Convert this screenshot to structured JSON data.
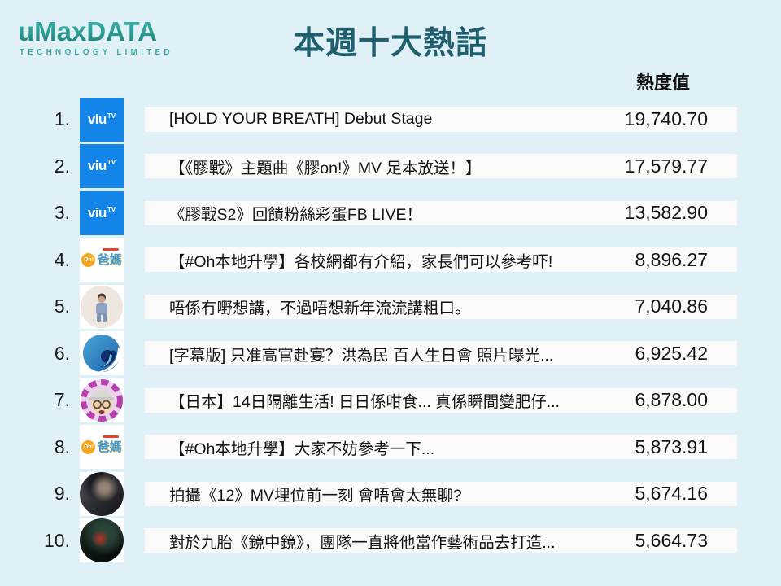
{
  "brand": {
    "name": "uMaxDATA",
    "subtitle": "TECHNOLOGY LIMITED"
  },
  "title": "本週十大熱話",
  "column_header": "熱度值",
  "colors": {
    "background": "#DFF0F6",
    "bar_background": "#FAFAFA",
    "title_teal": "#20606E",
    "brand_teal": "#2FA39B",
    "viutv_blue": "#1485E8",
    "ohpama_orange": "#F7A61B",
    "ohpama_blue": "#3D9BD4",
    "wave_navy": "#0F2E66"
  },
  "icons": {
    "viutv_label": "viu",
    "viutv_sup": "TV",
    "ohpama_circle": "Oh!",
    "ohpama_text": "爸媽"
  },
  "rows": [
    {
      "rank": "1.",
      "icon": "viutv",
      "title": "[HOLD YOUR BREATH] Debut Stage",
      "value": "19,740.70"
    },
    {
      "rank": "2.",
      "icon": "viutv",
      "title": "【《膠戰》主題曲《膠on!》MV 足本放送！】",
      "value": "17,579.77"
    },
    {
      "rank": "3.",
      "icon": "viutv",
      "title": "《膠戰S2》回饋粉絲彩蛋FB LIVE！",
      "value": "13,582.90"
    },
    {
      "rank": "4.",
      "icon": "ohpama",
      "title": "【#Oh本地升學】各校網都有介紹，家長們可以參考吓!",
      "value": "8,896.27"
    },
    {
      "rank": "5.",
      "icon": "person-photo",
      "title": "唔係冇嘢想講，不過唔想新年流流講粗口。",
      "value": "7,040.86"
    },
    {
      "rank": "6.",
      "icon": "wave-logo",
      "title": "[字幕版] 只准高官赴宴？洪為民 百人生日會 照片曝光...",
      "value": "6,925.42"
    },
    {
      "rank": "7.",
      "icon": "capman-photo",
      "title": "【日本】14日隔離生活! 日日係咁食... 真係瞬間變肥仔...",
      "value": "6,878.00"
    },
    {
      "rank": "8.",
      "icon": "ohpama",
      "title": "【#Oh本地升學】大家不妨參考一下...",
      "value": "5,873.91"
    },
    {
      "rank": "9.",
      "icon": "portrait-photo",
      "title": "拍攝《12》MV埋位前一刻 會唔會太無聊?",
      "value": "5,674.16"
    },
    {
      "rank": "10.",
      "icon": "darkgreen-photo",
      "title": "對於九胎《鏡中鏡》，團隊一直將他當作藝術品去打造...",
      "value": "5,664.73"
    }
  ],
  "chart_data": {
    "type": "table",
    "title": "本週十大熱話",
    "value_label": "熱度值",
    "ranks": [
      1,
      2,
      3,
      4,
      5,
      6,
      7,
      8,
      9,
      10
    ],
    "labels": [
      "[HOLD YOUR BREATH] Debut Stage",
      "【《膠戰》主題曲《膠on!》MV 足本放送！】",
      "《膠戰S2》回饋粉絲彩蛋FB LIVE！",
      "【#Oh本地升學】各校網都有介紹，家長們可以參考吓!",
      "唔係冇嘢想講，不過唔想新年流流講粗口。",
      "[字幕版] 只准高官赴宴？洪為民 百人生日會 照片曝光...",
      "【日本】14日隔離生活! 日日係咁食... 真係瞬間變肥仔...",
      "【#Oh本地升學】大家不妨參考一下...",
      "拍攝《12》MV埋位前一刻 會唔會太無聊?",
      "對於九胎《鏡中鏡》，團隊一直將他當作藝術品去打造..."
    ],
    "values": [
      19740.7,
      17579.77,
      13582.9,
      8896.27,
      7040.86,
      6925.42,
      6878.0,
      5873.91,
      5674.16,
      5664.73
    ]
  }
}
